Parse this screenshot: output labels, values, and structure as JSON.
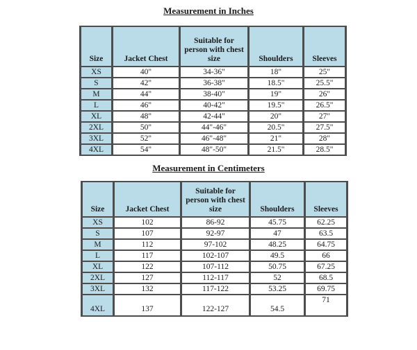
{
  "colors": {
    "header_bg": "#b9dce8",
    "border": "#4d4d4d",
    "text": "#1c1c1c",
    "page_bg": "#ffffff"
  },
  "tables": [
    {
      "title": "Measurement in Inches",
      "columns": [
        "Size",
        "Jacket Chest",
        "Suitable for person with chest size",
        "Shoulders",
        "Sleeves"
      ],
      "rows": [
        [
          "XS",
          "40\"",
          "34-36\"",
          "18\"",
          "25\""
        ],
        [
          "S",
          "42\"",
          "36-38\"",
          "18.5\"",
          "25.5\""
        ],
        [
          "M",
          "44\"",
          "38-40\"",
          "19\"",
          "26\""
        ],
        [
          "L",
          "46\"",
          "40-42\"",
          "19.5\"",
          "26.5\""
        ],
        [
          "XL",
          "48\"",
          "42-44\"",
          "20\"",
          "27\""
        ],
        [
          "2XL",
          "50\"",
          "44\"-46\"",
          "20.5\"",
          "27.5\""
        ],
        [
          "3XL",
          "52\"",
          "46\"-48\"",
          "21\"",
          "28\""
        ],
        [
          "4XL",
          "54\"",
          "48\"-50\"",
          "21.5\"",
          "28.5\""
        ]
      ],
      "tall_last_row": false
    },
    {
      "title": "Measurement in Centimeters",
      "columns": [
        "Size",
        "Jacket Chest",
        "Suitable for person with chest size",
        "Shoulders",
        "Sleeves"
      ],
      "rows": [
        [
          "XS",
          "102",
          "86-92",
          "45.75",
          "62.25"
        ],
        [
          "S",
          "107",
          "92-97",
          "47",
          "63.5"
        ],
        [
          "M",
          "112",
          "97-102",
          "48.25",
          "64.75"
        ],
        [
          "L",
          "117",
          "102-107",
          "49.5",
          "66"
        ],
        [
          "XL",
          "122",
          "107-112",
          "50.75",
          "67.25"
        ],
        [
          "2XL",
          "127",
          "112-117",
          "52",
          "68.5"
        ],
        [
          "3XL",
          "132",
          "117-122",
          "53.25",
          "69.75"
        ],
        [
          "4XL",
          "137",
          "122-127",
          "54.5",
          "71"
        ]
      ],
      "tall_last_row": true
    }
  ]
}
